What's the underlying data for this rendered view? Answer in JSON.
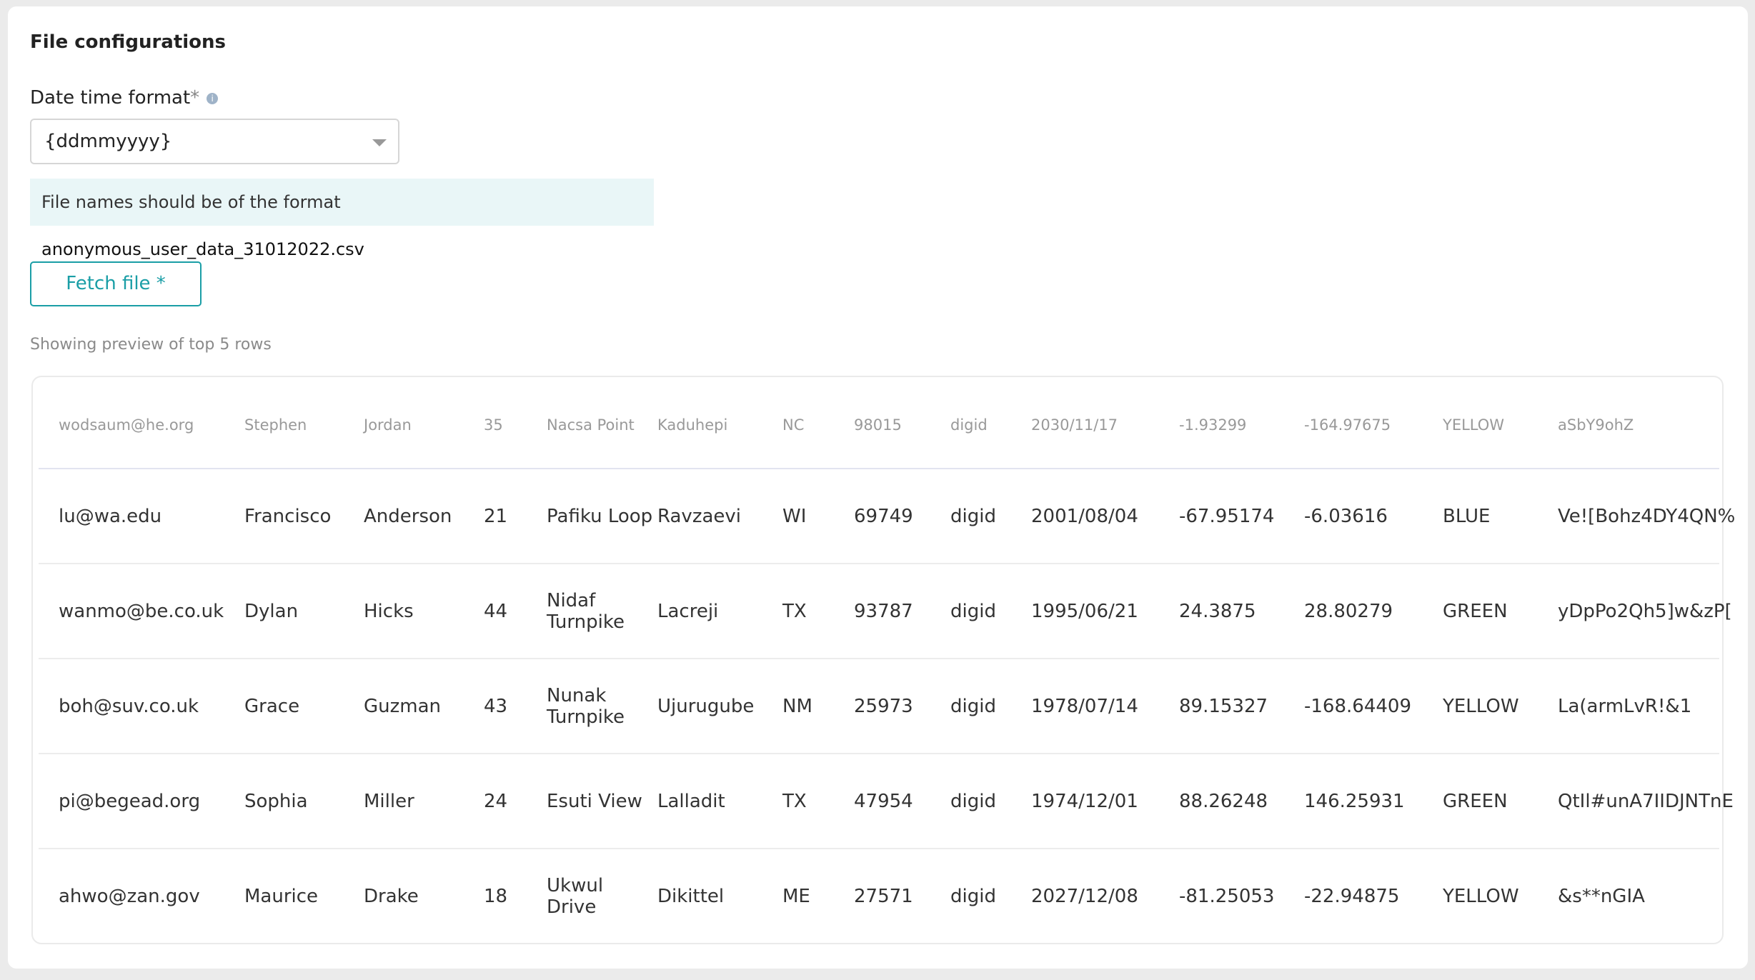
{
  "header": {
    "title": "File configurations"
  },
  "form": {
    "date_label": "Date time format",
    "required_mark": "*",
    "date_value": "{ddmmyyyy}",
    "hint_prefix": "File names should be of the format",
    "hint_example": "anonymous_user_data_31012022.csv",
    "fetch_button": "Fetch file *",
    "preview_caption": "Showing preview of top 5 rows"
  },
  "table": {
    "header": [
      "wodsaum@he.org",
      "Stephen",
      "Jordan",
      "35",
      "Nacsa Point",
      "Kaduhepi",
      "NC",
      "98015",
      "digid",
      "2030/11/17",
      "-1.93299",
      "-164.97675",
      "YELLOW",
      "aSbY9ohZ"
    ],
    "rows": [
      [
        "lu@wa.edu",
        "Francisco",
        "Anderson",
        "21",
        "Pafiku Loop",
        "Ravzaevi",
        "WI",
        "69749",
        "digid",
        "2001/08/04",
        "-67.95174",
        "-6.03616",
        "BLUE",
        "Ve![Bohz4DY4QN%"
      ],
      [
        "wanmo@be.co.uk",
        "Dylan",
        "Hicks",
        "44",
        "Nidaf Turnpike",
        "Lacreji",
        "TX",
        "93787",
        "digid",
        "1995/06/21",
        "24.3875",
        "28.80279",
        "GREEN",
        "yDpPo2Qh5]w&zP["
      ],
      [
        "boh@suv.co.uk",
        "Grace",
        "Guzman",
        "43",
        "Nunak Turnpike",
        "Ujurugube",
        "NM",
        "25973",
        "digid",
        "1978/07/14",
        "89.15327",
        "-168.64409",
        "YELLOW",
        "La(armLvR!&1"
      ],
      [
        "pi@begead.org",
        "Sophia",
        "Miller",
        "24",
        "Esuti View",
        "Lalladit",
        "TX",
        "47954",
        "digid",
        "1974/12/01",
        "88.26248",
        "146.25931",
        "GREEN",
        "QtIl#unA7IIDJNTnE"
      ],
      [
        "ahwo@zan.gov",
        "Maurice",
        "Drake",
        "18",
        "Ukwul Drive",
        "Dikittel",
        "ME",
        "27571",
        "digid",
        "2027/12/08",
        "-81.25053",
        "-22.94875",
        "YELLOW",
        "&s**nGIA"
      ]
    ]
  }
}
